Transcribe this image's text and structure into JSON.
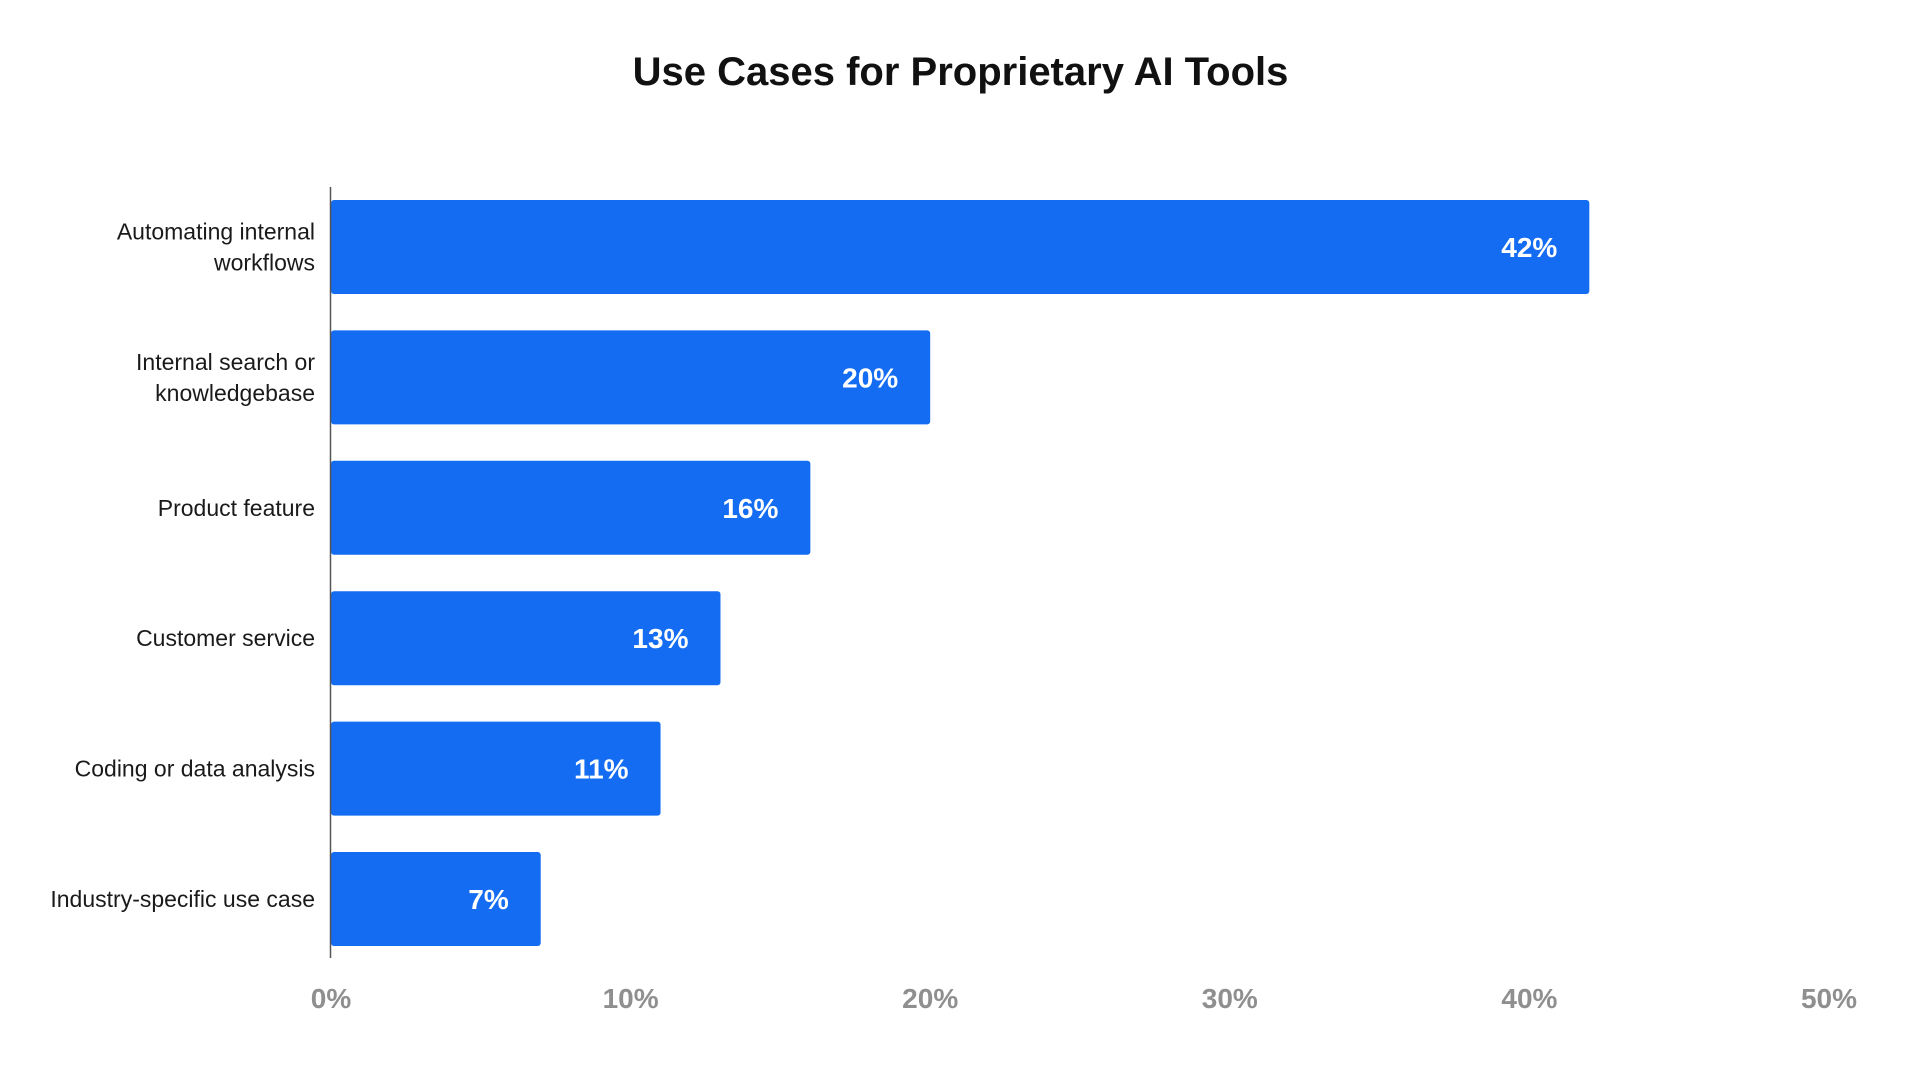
{
  "chart_data": {
    "type": "bar",
    "orientation": "horizontal",
    "title": "Use Cases for Proprietary AI Tools",
    "categories": [
      "Automating internal workflows",
      "Internal search or knowledgebase",
      "Product feature",
      "Customer service",
      "Coding or data analysis",
      "Industry-specific use case"
    ],
    "category_lines": [
      [
        "Automating internal",
        "workflows"
      ],
      [
        "Internal search or",
        "knowledgebase"
      ],
      [
        "Product feature"
      ],
      [
        "Customer service"
      ],
      [
        "Coding or data analysis"
      ],
      [
        "Industry-specific use case"
      ]
    ],
    "values": [
      42,
      20,
      16,
      13,
      11,
      7
    ],
    "value_labels": [
      "42%",
      "20%",
      "16%",
      "13%",
      "11%",
      "7%"
    ],
    "xlim": [
      0,
      50
    ],
    "xticks": [
      0,
      10,
      20,
      30,
      40,
      50
    ],
    "xtick_labels": [
      "0%",
      "10%",
      "20%",
      "30%",
      "40%",
      "50%"
    ],
    "xlabel": "",
    "ylabel": "",
    "grid": false,
    "legend": false,
    "bar_color": "#136cf2",
    "value_label_color": "#ffffff",
    "tick_label_color": "#8f8f8f",
    "axis_color": "#555555"
  }
}
